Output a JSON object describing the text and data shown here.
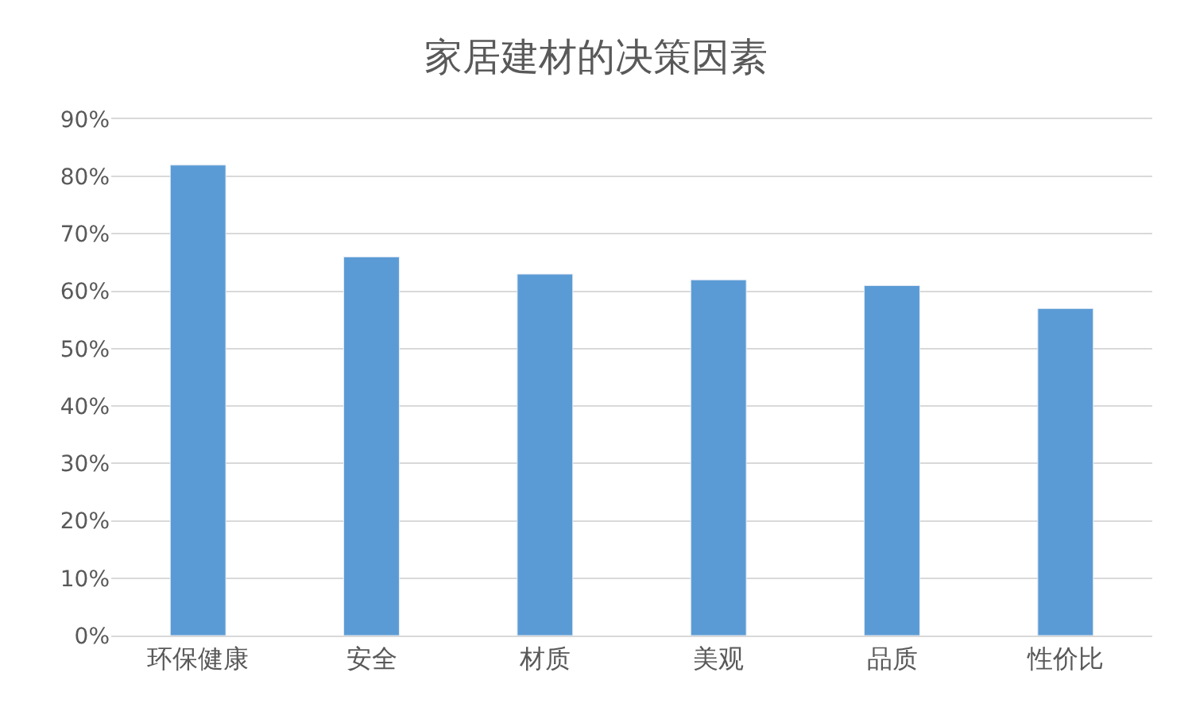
{
  "chart_data": {
    "type": "bar",
    "title": "家居建材的决策因素",
    "categories": [
      "环保健康",
      "安全",
      "材质",
      "美观",
      "品质",
      "性价比"
    ],
    "values": [
      82,
      66,
      63,
      62,
      61,
      57
    ],
    "color": "#5b9bd5",
    "ylim": [
      0,
      90
    ],
    "yticks": [
      {
        "value": 0,
        "label": "0%"
      },
      {
        "value": 10,
        "label": "10%"
      },
      {
        "value": 20,
        "label": "20%"
      },
      {
        "value": 30,
        "label": "30%"
      },
      {
        "value": 40,
        "label": "40%"
      },
      {
        "value": 50,
        "label": "50%"
      },
      {
        "value": 60,
        "label": "60%"
      },
      {
        "value": 70,
        "label": "70%"
      },
      {
        "value": 80,
        "label": "80%"
      },
      {
        "value": 90,
        "label": "90%"
      }
    ],
    "grid": "y"
  }
}
